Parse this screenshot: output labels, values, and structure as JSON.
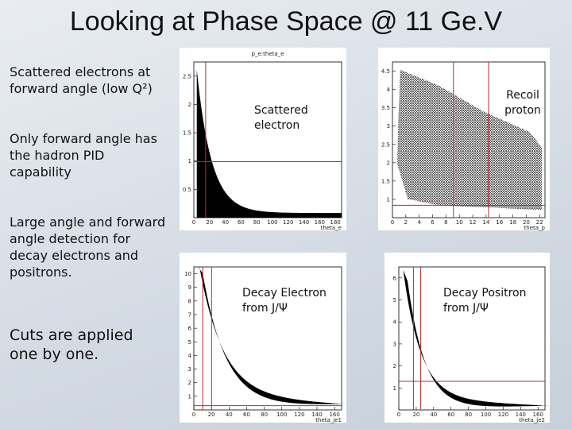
{
  "title": "Looking at Phase Space @ 11 Ge.V",
  "bullets": [
    "Scattered electrons at forward angle (low Q²)",
    "Only forward angle has the hadron PID capability",
    "Large angle and forward angle detection for decay electrons and positrons.",
    "Cuts are applied one by one."
  ],
  "plots": [
    {
      "title": "p_e:theta_e",
      "label": "Scattered electron",
      "xlabel": "theta_e",
      "xticks": [
        0,
        20,
        40,
        60,
        80,
        100,
        120,
        140,
        160,
        180
      ],
      "yticks": [
        0.5,
        1,
        1.5,
        2,
        2.5
      ]
    },
    {
      "label": "Recoil proton",
      "xlabel": "theta_p",
      "xticks": [
        0,
        2,
        4,
        6,
        8,
        10,
        12,
        14,
        16,
        18,
        20,
        22
      ],
      "yticks": [
        1,
        1.5,
        2,
        2.5,
        3,
        3.5,
        4,
        4.5
      ]
    },
    {
      "label": "Decay Electron from J/Ψ",
      "xlabel": "theta_je1",
      "xticks": [
        0,
        20,
        40,
        60,
        80,
        100,
        120,
        140,
        160
      ],
      "yticks": [
        1,
        2,
        3,
        4,
        5,
        6,
        7,
        8,
        9,
        10
      ]
    },
    {
      "label": "Decay Positron from J/Ψ",
      "xlabel": "theta_je2",
      "xticks": [
        0,
        20,
        40,
        60,
        80,
        100,
        120,
        140,
        160
      ],
      "yticks": [
        1,
        2,
        3,
        4,
        5,
        6
      ]
    }
  ]
}
